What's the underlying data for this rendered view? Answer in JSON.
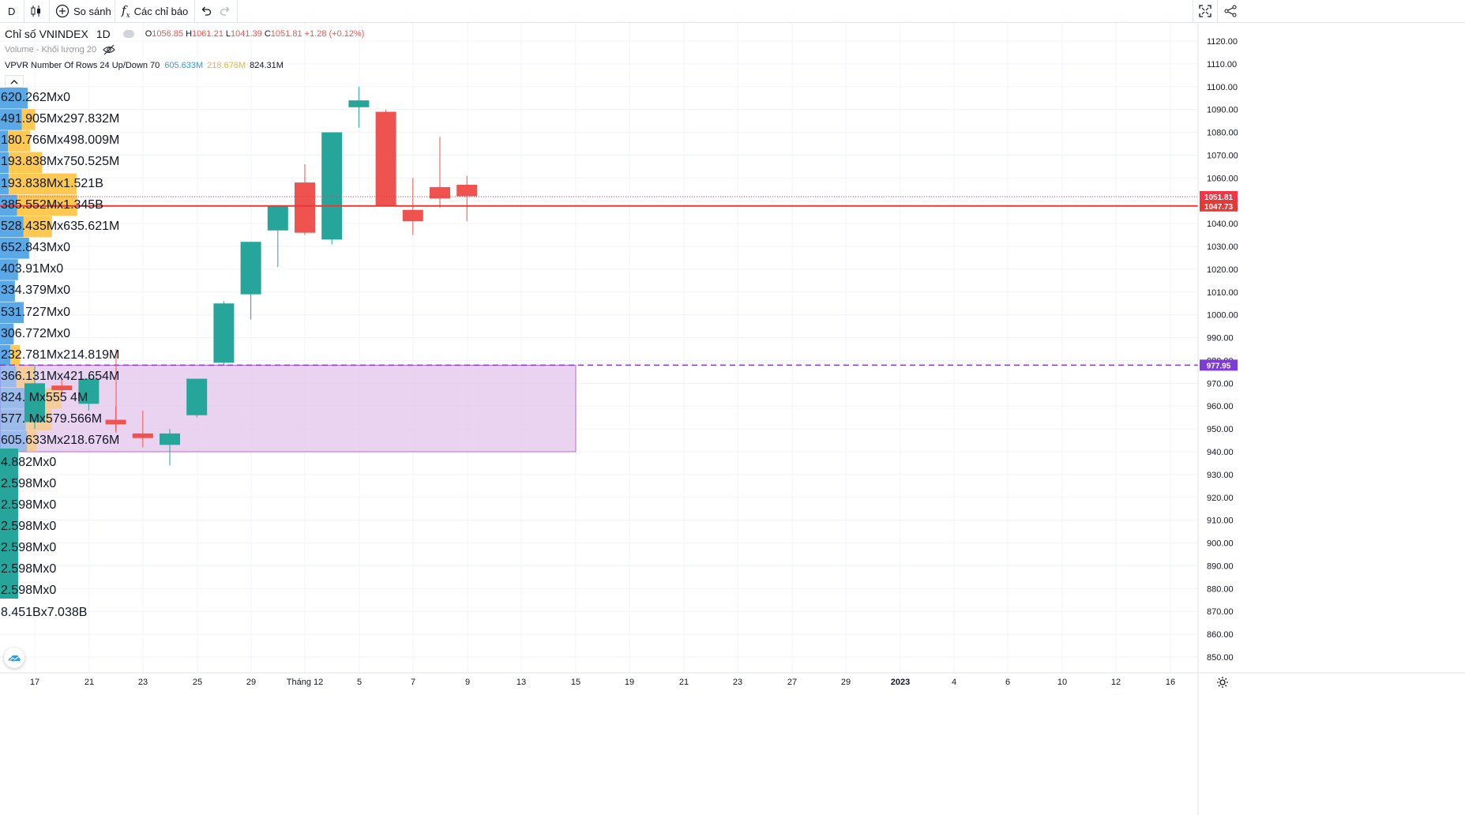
{
  "toolbar": {
    "interval": "D",
    "compare_label": "So sánh",
    "indicators_label": "Các chỉ báo"
  },
  "legend": {
    "symbol": "Chỉ số VNINDEX",
    "interval": "1D",
    "ohlc": {
      "o_label": "O",
      "o": "1056.85",
      "h_label": "H",
      "h": "1061.21",
      "l_label": "L",
      "l": "1041.39",
      "c_label": "C",
      "c": "1051.81",
      "change": "+1.28 (+0.12%)"
    },
    "volume": "Volume - Khối lượng 20",
    "vpvr": "VPVR Number Of Rows 24 Up/Down 70",
    "vpvr_up": "605.633M",
    "vpvr_down": "218.676M",
    "vpvr_total": "824.31M"
  },
  "colors": {
    "up": "#26a69a",
    "down": "#ef5350",
    "vp_up": "#5ba8e6",
    "vp_down": "#fdc953",
    "box": "#e1c4ec",
    "price_line": "#f23645",
    "dash": "#7e3bd6"
  },
  "price_badges": {
    "last": "1051.81",
    "line": "1047.73",
    "dash": "977.95"
  },
  "chart_data": {
    "type": "candlestick",
    "y_axis": {
      "min": 845,
      "max": 1125,
      "ticks": [
        "1120.00",
        "1110.00",
        "1100.00",
        "1090.00",
        "1080.00",
        "1070.00",
        "1060.00",
        "1050.00",
        "1040.00",
        "1030.00",
        "1020.00",
        "1010.00",
        "1000.00",
        "990.00",
        "980.00",
        "970.00",
        "960.00",
        "950.00",
        "940.00",
        "930.00",
        "920.00",
        "910.00",
        "900.00",
        "890.00",
        "880.00",
        "870.00",
        "860.00",
        "850.00"
      ]
    },
    "x_axis": {
      "ticks": [
        "17",
        "21",
        "23",
        "25",
        "29",
        "Tháng 12",
        "5",
        "7",
        "9",
        "13",
        "15",
        "19",
        "21",
        "23",
        "27",
        "29",
        "2023",
        "4",
        "6",
        "10",
        "12",
        "16"
      ]
    },
    "candles": [
      {
        "o": 953,
        "h": 978,
        "l": 950,
        "c": 970
      },
      {
        "o": 969,
        "h": 972,
        "l": 965,
        "c": 967
      },
      {
        "o": 961,
        "h": 973,
        "l": 958,
        "c": 972
      },
      {
        "o": 954,
        "h": 960,
        "l": 949,
        "c": 952
      },
      {
        "o": 948,
        "h": 958,
        "l": 942,
        "c": 946
      },
      {
        "o": 943,
        "h": 950,
        "l": 934,
        "c": 948
      },
      {
        "o": 956,
        "h": 972,
        "l": 955,
        "c": 972
      },
      {
        "o": 979,
        "h": 1006,
        "l": 978,
        "c": 1005
      },
      {
        "o": 1009,
        "h": 1032,
        "l": 998,
        "c": 1032
      },
      {
        "o": 1037,
        "h": 1048,
        "l": 1021,
        "c": 1048
      },
      {
        "o": 1058,
        "h": 1066,
        "l": 1035,
        "c": 1036
      },
      {
        "o": 1033,
        "h": 1080,
        "l": 1031,
        "c": 1080
      },
      {
        "o": 1091,
        "h": 1100,
        "l": 1082,
        "c": 1094
      },
      {
        "o": 1089,
        "h": 1090,
        "l": 1048,
        "c": 1048
      },
      {
        "o": 1046,
        "h": 1060,
        "l": 1035,
        "c": 1041
      },
      {
        "o": 1056,
        "h": 1078,
        "l": 1047,
        "c": 1051
      },
      {
        "o": 1057,
        "h": 1061,
        "l": 1041,
        "c": 1052
      }
    ],
    "volume_profile": [
      {
        "up": "620.262M",
        "down": "0",
        "label": "620.262Mx0"
      },
      {
        "up": "491.905M",
        "down": "297.832M",
        "label": "491.905Mx297.832M"
      },
      {
        "up": "180.766M",
        "down": "498.009M",
        "label": "180.766Mx498.009M"
      },
      {
        "up": "193.838M",
        "down": "750.525M",
        "label": "193.838Mx750.525M"
      },
      {
        "up": "193.838M",
        "down": "1.521B",
        "label": "193.838Mx1.521B"
      },
      {
        "up": "385.552M",
        "down": "1.345B",
        "label": "385.552Mx1.345B"
      },
      {
        "up": "528.435M",
        "down": "635.621M",
        "label": "528.435Mx635.621M"
      },
      {
        "up": "652.843M",
        "down": "0",
        "label": "652.843Mx0"
      },
      {
        "up": "403.91M",
        "down": "0",
        "label": "403.91Mx0"
      },
      {
        "up": "334.379M",
        "down": "0",
        "label": "334.379Mx0"
      },
      {
        "up": "531.727M",
        "down": "0",
        "label": "531.727Mx0"
      },
      {
        "up": "306.772M",
        "down": "0",
        "label": "306.772Mx0"
      },
      {
        "up": "232.781M",
        "down": "214.819M",
        "label": "232.781Mx214.819M"
      },
      {
        "up": "366.131M",
        "down": "421.654M",
        "label": "366.131Mx421.654M"
      },
      {
        "up": "824.",
        "down": "555.4M",
        "label": "824.   Mx555   4M"
      },
      {
        "up": "577.",
        "down": "579.566M",
        "label": "577.   Mx579.566M"
      },
      {
        "up": "605.633M",
        "down": "218.676M",
        "label": "605.633Mx218.676M"
      },
      {
        "up": "",
        "down": "0",
        "label": "   4.882Mx0"
      },
      {
        "up": "",
        "down": "0",
        "label": "   2.598Mx0"
      },
      {
        "up": "",
        "down": "0",
        "label": "   2.598Mx0"
      },
      {
        "up": "",
        "down": "0",
        "label": "   2.598Mx0"
      },
      {
        "up": "",
        "down": "0",
        "label": "   2.598Mx0"
      },
      {
        "up": "",
        "down": "0",
        "label": "   2.598Mx0"
      },
      {
        "up": "",
        "down": "0",
        "label": "   2.598Mx0"
      },
      {
        "up": "8.451B",
        "down": "7.038B",
        "label": "8.451Bx7.038B"
      }
    ]
  }
}
